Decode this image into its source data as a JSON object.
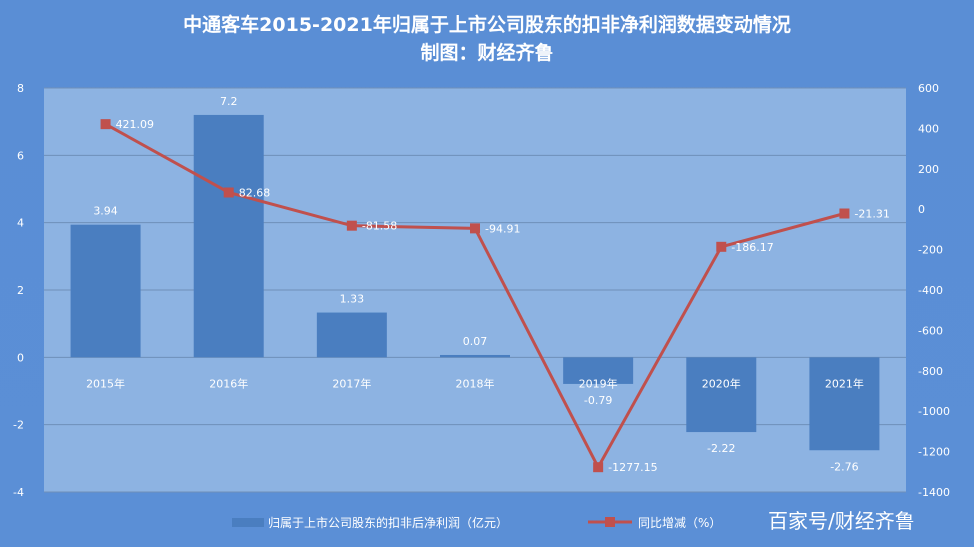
{
  "chart_data": {
    "type": "bar+line",
    "title": "中通客车2015-2021年归属于上市公司股东的扣非净利润数据变动情况",
    "subtitle": "制图：财经齐鲁",
    "categories": [
      "2015年",
      "2016年",
      "2017年",
      "2018年",
      "2019年",
      "2020年",
      "2021年"
    ],
    "series": [
      {
        "name": "归属于上市公司股东的扣非后净利润（亿元）",
        "type": "bar",
        "axis": "left",
        "values": [
          3.94,
          7.2,
          1.33,
          0.07,
          -0.79,
          -2.22,
          -2.76
        ],
        "labels": [
          "3.94",
          "7.2",
          "1.33",
          "0.07",
          "-0.79",
          "-2.22",
          "-2.76"
        ]
      },
      {
        "name": "同比增减（%）",
        "type": "line",
        "axis": "right",
        "values": [
          421.09,
          82.68,
          -81.58,
          -94.91,
          -1277.15,
          -186.17,
          -21.31
        ],
        "labels": [
          "421.09",
          "82.68",
          "-81.58",
          "-94.91",
          "-1277.15",
          "-186.17",
          "-21.31"
        ]
      }
    ],
    "ylim": [
      -4,
      8
    ],
    "yticks": [
      "8",
      "6",
      "4",
      "2",
      "0",
      "-2",
      "-4"
    ],
    "y2lim": [
      -1400,
      600
    ],
    "y2ticks": [
      "600",
      "400",
      "200",
      "0",
      "-200",
      "-400",
      "-600",
      "-800",
      "-1000",
      "-1200",
      "-1400"
    ],
    "grid": true,
    "legend": "bottom",
    "colors": {
      "bar": "#4a7ec0",
      "line": "#c0504d",
      "plot_bg": "#8db3e2",
      "bg": "#5b8fd6"
    }
  },
  "watermark": "百家号/财经齐鲁"
}
